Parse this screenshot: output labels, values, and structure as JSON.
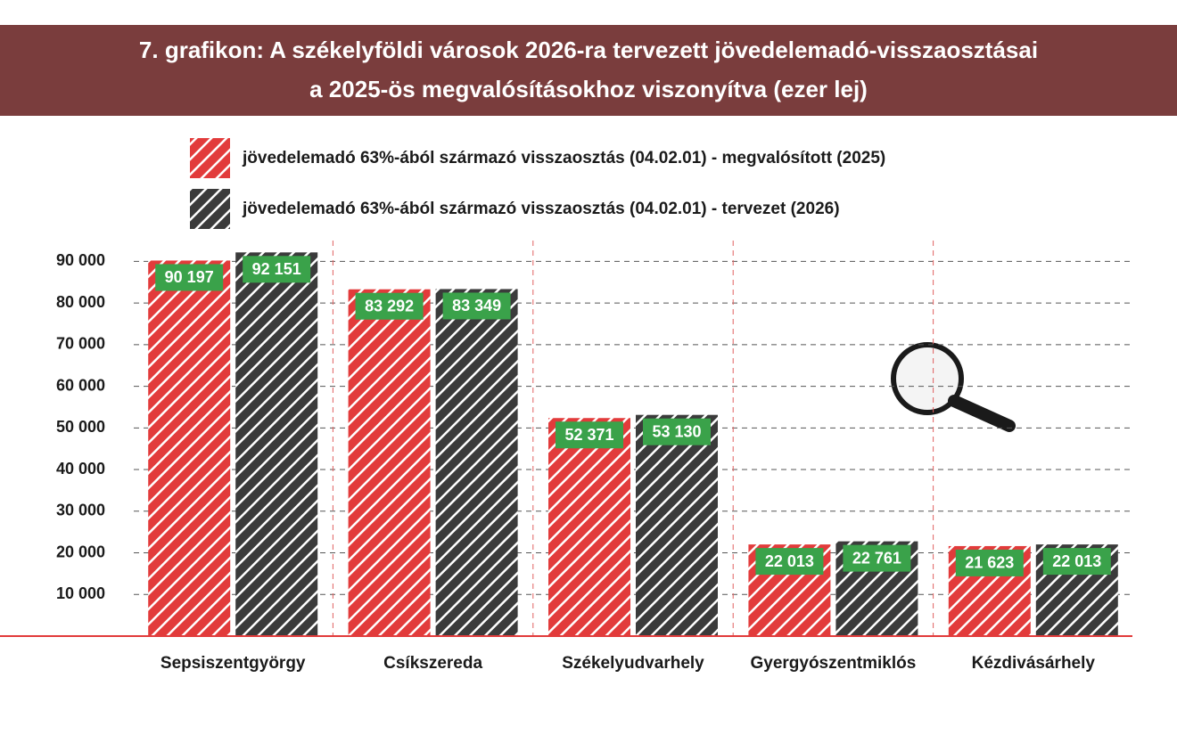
{
  "chart_data": {
    "type": "bar",
    "title": [
      "7. grafikon: A székelyföldi városok 2026-ra tervezett jövedelemadó-visszaosztásai",
      "a 2025-ös megvalósításokhoz viszonyítva (ezer lej)"
    ],
    "categories": [
      "Sepsiszentgyörgy",
      "Csíkszereda",
      "Székelyudvarhely",
      "Gyergyószentmiklós",
      "Kézdivásárhely"
    ],
    "series": [
      {
        "name": "jövedelemadó 63%-ából származó visszaosztás (04.02.01) - megvalósított (2025)",
        "color": "#e23b3b",
        "values": [
          90197,
          83292,
          52371,
          22013,
          21623
        ],
        "value_labels": [
          "90 197",
          "83 292",
          "52 371",
          "22 013",
          "21 623"
        ]
      },
      {
        "name": "jövedelemadó 63%-ából származó visszaosztás (04.02.01) - tervezet (2026)",
        "color": "#3b3b3b",
        "values": [
          92151,
          83349,
          53130,
          22761,
          22013
        ],
        "value_labels": [
          "92 151",
          "83 349",
          "53 130",
          "22 761",
          "22 013"
        ]
      }
    ],
    "ylim": [
      0,
      95000
    ],
    "yticks": [
      {
        "value": 10000,
        "label": "10 000"
      },
      {
        "value": 20000,
        "label": "20 000"
      },
      {
        "value": 30000,
        "label": "30 000"
      },
      {
        "value": 40000,
        "label": "40 000"
      },
      {
        "value": 50000,
        "label": "50 000"
      },
      {
        "value": 60000,
        "label": "60 000"
      },
      {
        "value": 70000,
        "label": "70 000"
      },
      {
        "value": 80000,
        "label": "80 000"
      },
      {
        "value": 90000,
        "label": "90 000"
      }
    ],
    "grid": true,
    "label_color": "#3aa24a"
  }
}
